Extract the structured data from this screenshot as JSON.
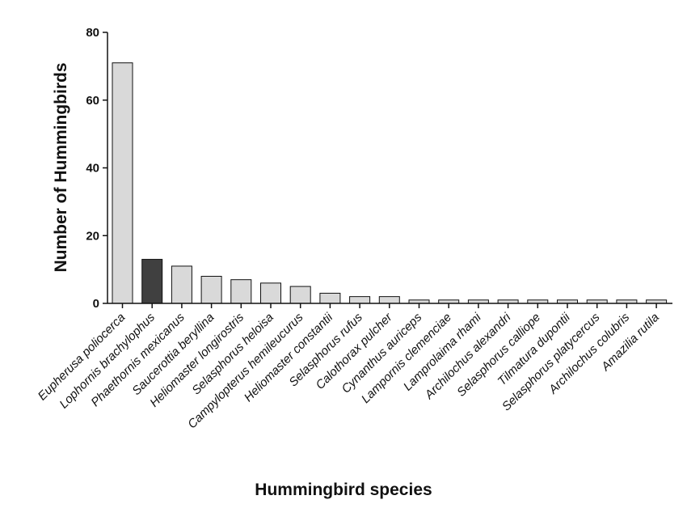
{
  "chart_data": {
    "type": "bar",
    "title": "",
    "xlabel": "Hummingbird species",
    "ylabel": "Number of Hummingbirds",
    "ylim": [
      0,
      80
    ],
    "yticks": [
      0,
      20,
      40,
      60,
      80
    ],
    "grid": false,
    "categories": [
      "Eupherusa poliocerca",
      "Lophornis brachylophus",
      "Phaethornis mexicanus",
      "Saucerottia beryllina",
      "Heliomaster longirostris",
      "Selasphorus heloisa",
      "Campylopterus hemileucurus",
      "Heliomaster constantii",
      "Selasphorus rufus",
      "Calothorax pulcher",
      "Cynanthus auriceps",
      "Lampornis clemenciae",
      "Lamprolaima rhami",
      "Archilochus alexandri",
      "Selasphorus  calliope",
      "Tilmatura dupontii",
      "Selasphorus platycercus",
      "Archilochus colubris",
      "Amazilia rutila"
    ],
    "values": [
      71,
      13,
      11,
      8,
      7,
      6,
      5,
      3,
      2,
      2,
      1,
      1,
      1,
      1,
      1,
      1,
      1,
      1,
      1
    ],
    "highlight_index": 1,
    "colors": {
      "bar_fill": "#d9d9d9",
      "highlight_fill": "#404040",
      "stroke": "#111111"
    }
  }
}
